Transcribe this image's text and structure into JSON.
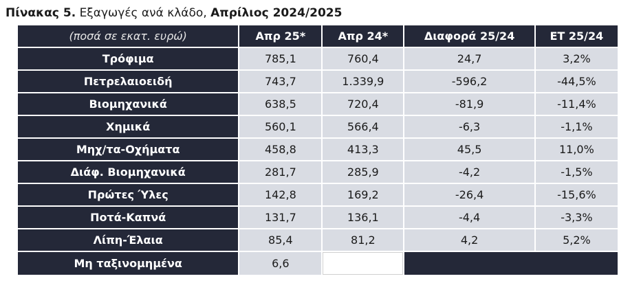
{
  "title": {
    "prefix": "Πίνακας 5.",
    "middle": "Εξαγωγές ανά κλάδο,",
    "period": "Απρίλιος 2024/2025"
  },
  "table": {
    "units_label": "(ποσά σε εκατ. ευρώ)",
    "columns": [
      "Απρ 25*",
      "Απρ 24*",
      "Διαφορά 25/24",
      "ΕΤ 25/24"
    ],
    "rows": [
      {
        "label": "Τρόφιμα",
        "apr25": "785,1",
        "apr24": "760,4",
        "diff": "24,7",
        "et": "3,2%"
      },
      {
        "label": "Πετρελαιοειδή",
        "apr25": "743,7",
        "apr24": "1.339,9",
        "diff": "-596,2",
        "et": "-44,5%"
      },
      {
        "label": "Βιομηχανικά",
        "apr25": "638,5",
        "apr24": "720,4",
        "diff": "-81,9",
        "et": "-11,4%"
      },
      {
        "label": "Χημικά",
        "apr25": "560,1",
        "apr24": "566,4",
        "diff": "-6,3",
        "et": "-1,1%"
      },
      {
        "label": "Μηχ/τα-Οχήματα",
        "apr25": "458,8",
        "apr24": "413,3",
        "diff": "45,5",
        "et": "11,0%"
      },
      {
        "label": "Διάφ. Βιομηχανικά",
        "apr25": "281,7",
        "apr24": "285,9",
        "diff": "-4,2",
        "et": "-1,5%"
      },
      {
        "label": "Πρώτες Ύλες",
        "apr25": "142,8",
        "apr24": "169,2",
        "diff": "-26,4",
        "et": "-15,6%"
      },
      {
        "label": "Ποτά-Καπνά",
        "apr25": "131,7",
        "apr24": "136,1",
        "diff": "-4,4",
        "et": "-3,3%"
      },
      {
        "label": "Λίπη-Έλαια",
        "apr25": "85,4",
        "apr24": "81,2",
        "diff": "4,2",
        "et": "5,2%"
      }
    ],
    "last_row": {
      "label": "Μη ταξινομημένα",
      "apr25": "6,6"
    }
  }
}
